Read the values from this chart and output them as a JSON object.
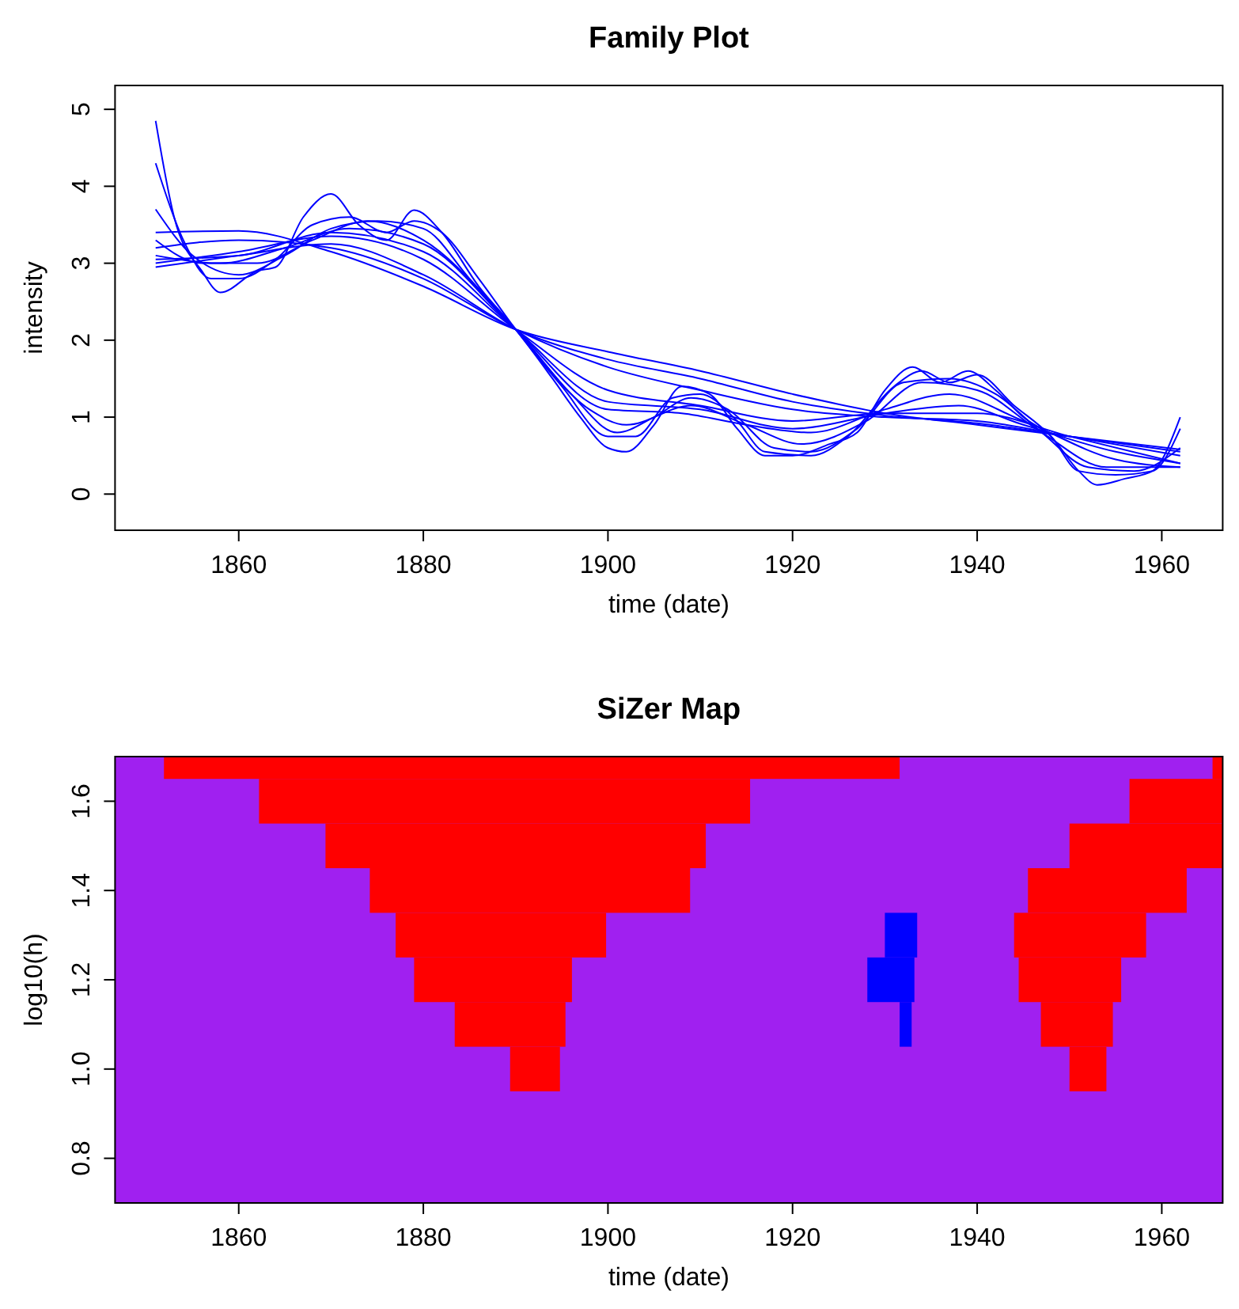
{
  "chart_data": [
    {
      "type": "line",
      "title": "Family Plot",
      "xlabel": "time (date)",
      "ylabel": "intensity",
      "xlim": [
        1846.6,
        1966.6
      ],
      "xticks": [
        1860,
        1880,
        1900,
        1920,
        1940,
        1960
      ],
      "ylim": [
        -0.47,
        5.31
      ],
      "yticks": [
        0,
        1,
        2,
        3,
        4,
        5
      ],
      "line_style": "solid",
      "series": [
        {
          "color": "#0000ff",
          "x": [
            1851,
            1860,
            1870,
            1880,
            1890,
            1900,
            1910,
            1920,
            1930,
            1940,
            1950,
            1962
          ],
          "values": [
            3.4,
            3.42,
            3.15,
            2.7,
            2.14,
            1.85,
            1.6,
            1.3,
            1.05,
            0.9,
            0.75,
            0.58
          ]
        },
        {
          "color": "#0000ff",
          "x": [
            1851,
            1860,
            1870,
            1880,
            1890,
            1900,
            1910,
            1920,
            1930,
            1940,
            1950,
            1962
          ],
          "values": [
            3.2,
            3.3,
            3.2,
            2.8,
            2.14,
            1.75,
            1.5,
            1.2,
            1.02,
            0.92,
            0.75,
            0.55
          ]
        },
        {
          "color": "#0000ff",
          "x": [
            1851,
            1860,
            1870,
            1880,
            1890,
            1900,
            1910,
            1920,
            1930,
            1940,
            1950,
            1962
          ],
          "values": [
            2.95,
            3.1,
            3.25,
            2.85,
            2.14,
            1.65,
            1.35,
            1.1,
            1.0,
            0.95,
            0.75,
            0.5
          ]
        },
        {
          "color": "#0000ff",
          "x": [
            1851,
            1860,
            1870,
            1880,
            1890,
            1900,
            1910,
            1920,
            1930,
            1940,
            1950,
            1962
          ],
          "values": [
            3.0,
            3.15,
            3.35,
            3.05,
            2.14,
            1.35,
            1.15,
            0.95,
            1.05,
            1.05,
            0.75,
            0.4
          ]
        },
        {
          "color": "#0000ff",
          "x": [
            1851,
            1860,
            1870,
            1880,
            1890,
            1900,
            1910,
            1920,
            1930,
            1938,
            1945,
            1955,
            1962
          ],
          "values": [
            3.05,
            3.1,
            3.4,
            3.15,
            2.14,
            1.2,
            1.1,
            0.85,
            1.05,
            1.15,
            0.9,
            0.55,
            0.4
          ]
        },
        {
          "color": "#0000ff",
          "x": [
            1851,
            1858,
            1865,
            1872,
            1880,
            1890,
            1900,
            1908,
            1915,
            1922,
            1930,
            1937,
            1945,
            1955,
            1962
          ],
          "values": [
            3.1,
            3.0,
            3.2,
            3.45,
            3.25,
            2.14,
            1.1,
            1.05,
            0.9,
            0.8,
            1.1,
            1.3,
            0.95,
            0.45,
            0.35
          ]
        },
        {
          "color": "#0000ff",
          "x": [
            1851,
            1856,
            1862,
            1868,
            1874,
            1880,
            1890,
            1898,
            1902,
            1909,
            1915,
            1921,
            1928,
            1934,
            1940,
            1947,
            1954,
            1962
          ],
          "values": [
            3.3,
            3.0,
            3.0,
            3.3,
            3.55,
            3.3,
            2.14,
            1.1,
            0.9,
            1.15,
            0.9,
            0.65,
            0.95,
            1.45,
            1.35,
            0.8,
            0.35,
            0.35
          ]
        },
        {
          "color": "#0000ff",
          "x": [
            1851,
            1855,
            1860,
            1865,
            1870,
            1875,
            1880,
            1885,
            1890,
            1896,
            1901,
            1905,
            1909,
            1913,
            1918,
            1922,
            1927,
            1932,
            1937,
            1942,
            1947,
            1952,
            1957,
            1962
          ],
          "values": [
            3.7,
            3.1,
            2.85,
            3.1,
            3.45,
            3.55,
            3.45,
            2.8,
            2.14,
            1.3,
            0.8,
            1.0,
            1.25,
            1.1,
            0.6,
            0.55,
            0.85,
            1.45,
            1.5,
            1.3,
            0.8,
            0.35,
            0.3,
            0.6
          ]
        },
        {
          "color": "#0000ff",
          "x": [
            1851,
            1854,
            1857,
            1860,
            1864,
            1868,
            1872,
            1876,
            1879,
            1882,
            1886,
            1890,
            1895,
            1900,
            1903,
            1907,
            1910,
            1914,
            1917,
            1922,
            1926,
            1931,
            1934,
            1937,
            1940,
            1944,
            1948,
            1951,
            1955,
            1959,
            1962
          ],
          "values": [
            4.3,
            3.3,
            2.8,
            2.8,
            3.05,
            3.5,
            3.6,
            3.4,
            3.55,
            3.4,
            2.8,
            2.14,
            1.4,
            0.75,
            0.75,
            1.25,
            1.3,
            0.95,
            0.55,
            0.5,
            0.75,
            1.4,
            1.6,
            1.45,
            1.55,
            1.15,
            0.75,
            0.3,
            0.25,
            0.3,
            0.85
          ]
        },
        {
          "color": "#0000ff",
          "x": [
            1851,
            1853,
            1856,
            1858,
            1862,
            1864,
            1867,
            1870,
            1873,
            1876,
            1879,
            1882,
            1886,
            1890,
            1894,
            1897,
            1900,
            1902,
            1905,
            1908,
            1911,
            1914,
            1917,
            1920,
            1924,
            1927,
            1930,
            1933,
            1936,
            1939,
            1942,
            1945,
            1948,
            1951,
            1953,
            1956,
            1959,
            1962
          ],
          "values": [
            4.85,
            3.6,
            2.9,
            2.62,
            2.9,
            2.95,
            3.6,
            3.9,
            3.5,
            3.3,
            3.69,
            3.4,
            2.7,
            2.14,
            1.5,
            1.0,
            0.6,
            0.55,
            0.9,
            1.4,
            1.3,
            0.85,
            0.5,
            0.5,
            0.65,
            0.8,
            1.35,
            1.65,
            1.45,
            1.6,
            1.35,
            1.0,
            0.75,
            0.3,
            0.12,
            0.2,
            0.3,
            1.0
          ]
        }
      ]
    },
    {
      "type": "bar",
      "orientation": "horizontal",
      "title": "SiZer Map",
      "xlabel": "time (date)",
      "ylabel": "log10(h)",
      "xlim": [
        1846.6,
        1966.6
      ],
      "xticks": [
        1860,
        1880,
        1900,
        1920,
        1940,
        1960
      ],
      "ylim": [
        0.7,
        1.7
      ],
      "yticks": [
        0.8,
        {
          "value": 1,
          "label": "1.0"
        },
        1.2,
        1.4,
        1.6
      ],
      "bands": [
        {
          "axis": "y",
          "from": 0.7,
          "to": 1.7,
          "color": "#a020f0"
        }
      ],
      "series": [
        {
          "color": "#ff0000",
          "x": [
            1.0,
            1.1,
            1.2,
            1.3,
            1.4,
            1.5,
            1.6,
            1.7
          ],
          "base": [
            1889.4,
            1883.4,
            1879.0,
            1877.0,
            1874.2,
            1869.4,
            1862.2,
            1851.9
          ],
          "values": [
            5.4,
            12.0,
            17.1,
            22.8,
            34.7,
            41.2,
            53.2,
            79.7
          ]
        },
        {
          "color": "#ff0000",
          "x": [
            1.0,
            1.1,
            1.2,
            1.3,
            1.4,
            1.5,
            1.6,
            1.7
          ],
          "base": [
            1950.0,
            1946.9,
            1944.5,
            1944.0,
            1945.5,
            1950.0,
            1956.5,
            1965.5
          ],
          "values": [
            4.0,
            7.8,
            11.1,
            14.3,
            17.2,
            16.6,
            10.1,
            1.1
          ]
        },
        {
          "color": "#0000ff",
          "x": [
            1.1,
            1.2,
            1.3
          ],
          "base": [
            1931.6,
            1928.1,
            1930.0
          ],
          "values": [
            1.3,
            5.1,
            3.5
          ]
        }
      ]
    }
  ]
}
